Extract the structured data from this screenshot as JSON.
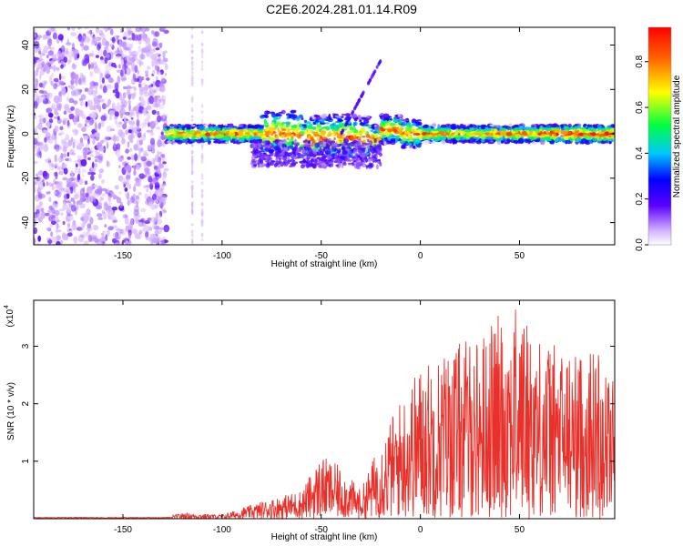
{
  "title": "C2E6.2024.281.01.14.R09",
  "chart_data": [
    {
      "type": "heatmap",
      "title": "C2E6.2024.281.01.14.R09",
      "xlabel": "Height of straight line (km)",
      "ylabel": "Frequency (Hz)",
      "xlim": [
        -195,
        98
      ],
      "ylim": [
        -50,
        48
      ],
      "xticks": [
        -150,
        -100,
        -50,
        0,
        50
      ],
      "yticks": [
        -40,
        -20,
        0,
        20,
        40
      ],
      "colorbar": {
        "label": "Normalized spectral amplitude",
        "range": [
          0,
          0.95
        ],
        "ticks": [
          0.0,
          0.2,
          0.4,
          0.6,
          0.8
        ]
      },
      "regions": [
        {
          "desc": "noise",
          "x": [
            -195,
            -128
          ],
          "y": [
            -50,
            48
          ],
          "amp": 0.1
        },
        {
          "desc": "signal band",
          "x": [
            -128,
            98
          ],
          "center_freq": 0,
          "amp": 0.9
        }
      ]
    },
    {
      "type": "line",
      "xlabel": "Height of straight line (km)",
      "ylabel": "SNR (10 * v/v)",
      "multiplier_label": "(x10",
      "multiplier_exp": "4",
      "xlim": [
        -195,
        98
      ],
      "ylim": [
        0,
        3.8
      ],
      "xticks": [
        -150,
        -100,
        -50,
        0,
        50
      ],
      "yticks": [
        1,
        2,
        3
      ],
      "series": [
        {
          "color": "#e8312a",
          "envelope": {
            "x": [
              -195,
              -130,
              -120,
              -100,
              -80,
              -60,
              -50,
              -40,
              -30,
              -20,
              -10,
              0,
              10,
              20,
              30,
              40,
              50,
              60,
              70,
              80,
              90,
              98
            ],
            "y": [
              0.01,
              0.02,
              0.1,
              0.07,
              0.3,
              0.5,
              1.1,
              0.9,
              0.5,
              1.4,
              2.1,
              2.7,
              2.9,
              3.1,
              3.2,
              3.6,
              3.7,
              3.2,
              3.0,
              2.9,
              3.0,
              2.5
            ]
          }
        }
      ]
    }
  ]
}
